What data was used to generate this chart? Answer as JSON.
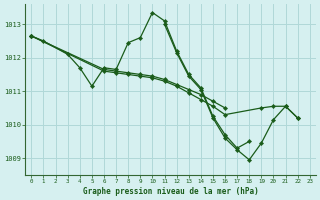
{
  "title": "Graphe pression niveau de la mer (hPa)",
  "bg_color": "#d6f0f0",
  "grid_color": "#b0d8d8",
  "line_color": "#1a5c1a",
  "series": [
    {
      "x": [
        0,
        1,
        3,
        4,
        5,
        6,
        7,
        8,
        9,
        10,
        11,
        12,
        13,
        14,
        15,
        16,
        17,
        18
      ],
      "y": [
        1012.65,
        1012.5,
        1012.1,
        1011.7,
        1011.15,
        1011.7,
        1011.65,
        1012.45,
        1012.6,
        1013.35,
        1013.1,
        1012.2,
        1011.5,
        1011.1,
        1010.25,
        1009.7,
        1009.3,
        1009.5
      ]
    },
    {
      "x": [
        0,
        6,
        7,
        8,
        9,
        10,
        11,
        12,
        13,
        14,
        15,
        16
      ],
      "y": [
        1012.65,
        1011.65,
        1011.6,
        1011.55,
        1011.5,
        1011.45,
        1011.35,
        1011.2,
        1011.05,
        1010.9,
        1010.7,
        1010.5
      ]
    },
    {
      "x": [
        0,
        6,
        7,
        8,
        9,
        10,
        11,
        12,
        13,
        14,
        15,
        16,
        19,
        20,
        21,
        22
      ],
      "y": [
        1012.65,
        1011.6,
        1011.55,
        1011.5,
        1011.45,
        1011.4,
        1011.3,
        1011.15,
        1010.95,
        1010.75,
        1010.55,
        1010.3,
        1010.5,
        1010.55,
        1010.55,
        1010.2
      ]
    },
    {
      "x": [
        11,
        12,
        13,
        14,
        15,
        16,
        17,
        18,
        19,
        20,
        21,
        22
      ],
      "y": [
        1013.0,
        1012.15,
        1011.45,
        1011.05,
        1010.2,
        1009.6,
        1009.25,
        1008.95,
        1009.45,
        1010.15,
        1010.55,
        1010.2
      ]
    }
  ],
  "ylim": [
    1008.5,
    1013.6
  ],
  "xlim": [
    -0.5,
    23.5
  ],
  "yticks": [
    1009,
    1010,
    1011,
    1012,
    1013
  ],
  "xticks": [
    0,
    1,
    2,
    3,
    4,
    5,
    6,
    7,
    8,
    9,
    10,
    11,
    12,
    13,
    14,
    15,
    16,
    17,
    18,
    19,
    20,
    21,
    22,
    23
  ]
}
